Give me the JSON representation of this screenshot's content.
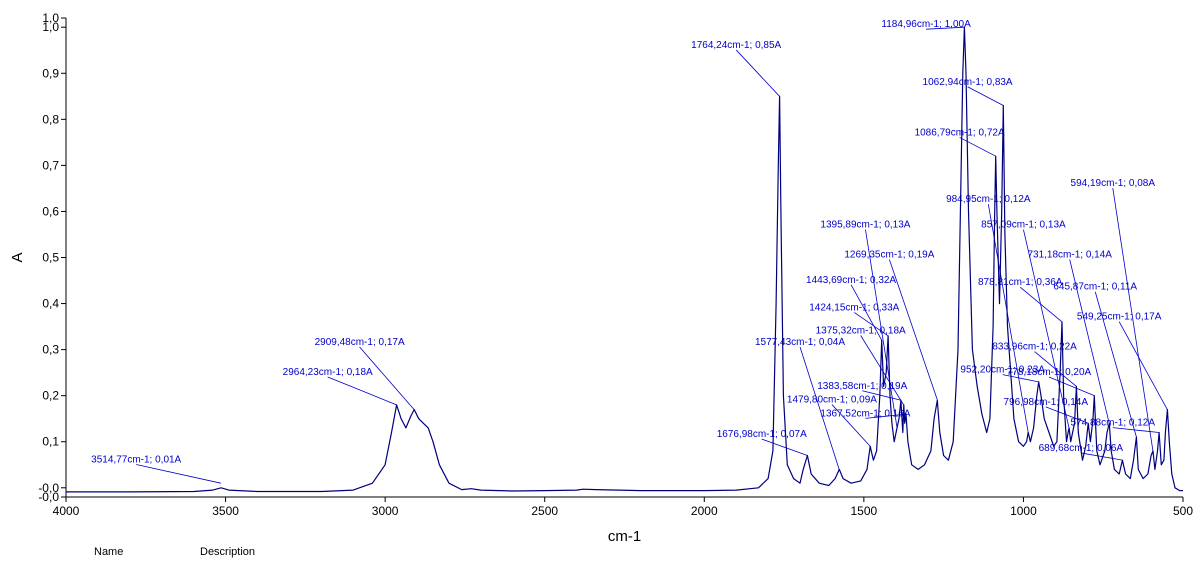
{
  "chart_data": {
    "type": "line",
    "xlabel": "cm-1",
    "ylabel": "A",
    "xlim": [
      4000,
      500
    ],
    "ylim": [
      -0.02,
      1.02
    ],
    "x_reversed": true,
    "x_ticks": [
      4000,
      3500,
      3000,
      2500,
      2000,
      1500,
      1000,
      500
    ],
    "x_tick_labels": [
      "4000",
      "3500",
      "3000",
      "2500",
      "2000",
      "1500",
      "1000",
      "500"
    ],
    "y_ticks": [
      {
        "value": -0.02,
        "label": "-0,0"
      },
      {
        "value": 0.0,
        "label": "-0,0"
      },
      {
        "value": 0.1,
        "label": "0,1"
      },
      {
        "value": 0.2,
        "label": "0,2"
      },
      {
        "value": 0.3,
        "label": "0,3"
      },
      {
        "value": 0.4,
        "label": "0,4"
      },
      {
        "value": 0.5,
        "label": "0,5"
      },
      {
        "value": 0.6,
        "label": "0,6"
      },
      {
        "value": 0.7,
        "label": "0,7"
      },
      {
        "value": 0.8,
        "label": "0,8"
      },
      {
        "value": 0.9,
        "label": "0,9"
      },
      {
        "value": 1.0,
        "label": "1,0"
      },
      {
        "value": 1.02,
        "label": "1,0"
      }
    ],
    "grid": false,
    "line_color": "#00007f",
    "annotation_color": "#0000cc",
    "series": [
      {
        "points": [
          [
            4000,
            -0.009
          ],
          [
            3800,
            -0.009
          ],
          [
            3600,
            -0.008
          ],
          [
            3540,
            -0.005
          ],
          [
            3514,
            0.0
          ],
          [
            3490,
            -0.005
          ],
          [
            3400,
            -0.008
          ],
          [
            3200,
            -0.008
          ],
          [
            3100,
            -0.005
          ],
          [
            3040,
            0.01
          ],
          [
            3000,
            0.05
          ],
          [
            2980,
            0.12
          ],
          [
            2964,
            0.18
          ],
          [
            2950,
            0.15
          ],
          [
            2935,
            0.13
          ],
          [
            2920,
            0.155
          ],
          [
            2909,
            0.17
          ],
          [
            2895,
            0.15
          ],
          [
            2880,
            0.14
          ],
          [
            2865,
            0.13
          ],
          [
            2850,
            0.1
          ],
          [
            2830,
            0.05
          ],
          [
            2800,
            0.01
          ],
          [
            2760,
            -0.004
          ],
          [
            2730,
            -0.002
          ],
          [
            2700,
            -0.005
          ],
          [
            2600,
            -0.007
          ],
          [
            2500,
            -0.006
          ],
          [
            2400,
            -0.005
          ],
          [
            2380,
            -0.003
          ],
          [
            2340,
            -0.004
          ],
          [
            2200,
            -0.006
          ],
          [
            2000,
            -0.006
          ],
          [
            1900,
            -0.005
          ],
          [
            1830,
            0.0
          ],
          [
            1800,
            0.02
          ],
          [
            1785,
            0.08
          ],
          [
            1775,
            0.4
          ],
          [
            1768,
            0.7
          ],
          [
            1764,
            0.85
          ],
          [
            1760,
            0.6
          ],
          [
            1752,
            0.2
          ],
          [
            1740,
            0.05
          ],
          [
            1720,
            0.02
          ],
          [
            1700,
            0.01
          ],
          [
            1690,
            0.04
          ],
          [
            1677,
            0.07
          ],
          [
            1665,
            0.03
          ],
          [
            1640,
            0.01
          ],
          [
            1610,
            0.005
          ],
          [
            1590,
            0.02
          ],
          [
            1577,
            0.04
          ],
          [
            1565,
            0.02
          ],
          [
            1540,
            0.01
          ],
          [
            1510,
            0.015
          ],
          [
            1490,
            0.04
          ],
          [
            1480,
            0.09
          ],
          [
            1470,
            0.06
          ],
          [
            1460,
            0.08
          ],
          [
            1450,
            0.2
          ],
          [
            1444,
            0.32
          ],
          [
            1438,
            0.22
          ],
          [
            1430,
            0.25
          ],
          [
            1424,
            0.33
          ],
          [
            1418,
            0.2
          ],
          [
            1412,
            0.14
          ],
          [
            1405,
            0.1
          ],
          [
            1396,
            0.13
          ],
          [
            1390,
            0.15
          ],
          [
            1384,
            0.19
          ],
          [
            1378,
            0.12
          ],
          [
            1375,
            0.18
          ],
          [
            1372,
            0.14
          ],
          [
            1368,
            0.16
          ],
          [
            1362,
            0.1
          ],
          [
            1350,
            0.05
          ],
          [
            1330,
            0.04
          ],
          [
            1310,
            0.05
          ],
          [
            1290,
            0.08
          ],
          [
            1280,
            0.15
          ],
          [
            1270,
            0.19
          ],
          [
            1262,
            0.12
          ],
          [
            1250,
            0.07
          ],
          [
            1235,
            0.06
          ],
          [
            1220,
            0.1
          ],
          [
            1205,
            0.3
          ],
          [
            1195,
            0.7
          ],
          [
            1190,
            0.9
          ],
          [
            1185,
            1.0
          ],
          [
            1180,
            0.9
          ],
          [
            1172,
            0.6
          ],
          [
            1160,
            0.3
          ],
          [
            1145,
            0.22
          ],
          [
            1130,
            0.16
          ],
          [
            1115,
            0.12
          ],
          [
            1105,
            0.15
          ],
          [
            1095,
            0.35
          ],
          [
            1090,
            0.6
          ],
          [
            1087,
            0.72
          ],
          [
            1083,
            0.6
          ],
          [
            1075,
            0.4
          ],
          [
            1068,
            0.6
          ],
          [
            1063,
            0.83
          ],
          [
            1058,
            0.55
          ],
          [
            1050,
            0.35
          ],
          [
            1040,
            0.25
          ],
          [
            1030,
            0.15
          ],
          [
            1015,
            0.1
          ],
          [
            1000,
            0.09
          ],
          [
            990,
            0.1
          ],
          [
            985,
            0.12
          ],
          [
            978,
            0.1
          ],
          [
            968,
            0.13
          ],
          [
            958,
            0.2
          ],
          [
            952,
            0.23
          ],
          [
            945,
            0.2
          ],
          [
            935,
            0.15
          ],
          [
            920,
            0.12
          ],
          [
            905,
            0.09
          ],
          [
            895,
            0.1
          ],
          [
            885,
            0.25
          ],
          [
            879,
            0.36
          ],
          [
            874,
            0.2
          ],
          [
            865,
            0.1
          ],
          [
            860,
            0.12
          ],
          [
            857,
            0.13
          ],
          [
            852,
            0.1
          ],
          [
            840,
            0.14
          ],
          [
            834,
            0.22
          ],
          [
            828,
            0.12
          ],
          [
            815,
            0.06
          ],
          [
            805,
            0.09
          ],
          [
            797,
            0.14
          ],
          [
            790,
            0.1
          ],
          [
            782,
            0.15
          ],
          [
            778,
            0.2
          ],
          [
            770,
            0.08
          ],
          [
            760,
            0.05
          ],
          [
            745,
            0.08
          ],
          [
            738,
            0.12
          ],
          [
            731,
            0.14
          ],
          [
            725,
            0.08
          ],
          [
            715,
            0.04
          ],
          [
            700,
            0.03
          ],
          [
            690,
            0.06
          ],
          [
            680,
            0.03
          ],
          [
            665,
            0.02
          ],
          [
            655,
            0.06
          ],
          [
            646,
            0.11
          ],
          [
            640,
            0.04
          ],
          [
            625,
            0.02
          ],
          [
            610,
            0.03
          ],
          [
            600,
            0.07
          ],
          [
            594,
            0.08
          ],
          [
            588,
            0.04
          ],
          [
            580,
            0.08
          ],
          [
            575,
            0.12
          ],
          [
            568,
            0.05
          ],
          [
            560,
            0.06
          ],
          [
            555,
            0.12
          ],
          [
            549,
            0.17
          ],
          [
            543,
            0.1
          ],
          [
            535,
            0.03
          ],
          [
            525,
            0.0
          ],
          [
            510,
            -0.006
          ],
          [
            500,
            -0.006
          ]
        ]
      }
    ],
    "annotations": [
      {
        "x": 3514.77,
        "y": 0.01,
        "label": "3514,77cm-1; 0,01A",
        "lx": 3780,
        "ly": 0.055
      },
      {
        "x": 2964.23,
        "y": 0.18,
        "label": "2964,23cm-1; 0,18A",
        "lx": 3180,
        "ly": 0.245
      },
      {
        "x": 2909.48,
        "y": 0.17,
        "label": "2909,48cm-1; 0,17A",
        "lx": 3080,
        "ly": 0.31
      },
      {
        "x": 1764.24,
        "y": 0.85,
        "label": "1764,24cm-1; 0,85A",
        "lx": 1900,
        "ly": 0.955
      },
      {
        "x": 1676.98,
        "y": 0.07,
        "label": "1676,98cm-1; 0,07A",
        "lx": 1820,
        "ly": 0.11
      },
      {
        "x": 1577.43,
        "y": 0.04,
        "label": "1577,43cm-1; 0,04A",
        "lx": 1700,
        "ly": 0.31
      },
      {
        "x": 1479.8,
        "y": 0.09,
        "label": "1479,80cm-1; 0,09A",
        "lx": 1600,
        "ly": 0.185
      },
      {
        "x": 1443.69,
        "y": 0.32,
        "label": "1443,69cm-1; 0,32A",
        "lx": 1540,
        "ly": 0.445
      },
      {
        "x": 1424.15,
        "y": 0.33,
        "label": "1424,15cm-1; 0,33A",
        "lx": 1530,
        "ly": 0.385
      },
      {
        "x": 1395.89,
        "y": 0.13,
        "label": "1395,89cm-1; 0,13A",
        "lx": 1495,
        "ly": 0.565
      },
      {
        "x": 1383.58,
        "y": 0.19,
        "label": "1383,58cm-1; 0,19A",
        "lx": 1505,
        "ly": 0.215
      },
      {
        "x": 1375.32,
        "y": 0.18,
        "label": "1375,32cm-1; 0,18A",
        "lx": 1510,
        "ly": 0.335
      },
      {
        "x": 1367.52,
        "y": 0.16,
        "label": "1367,52cm-1; 0,16A",
        "lx": 1495,
        "ly": 0.155
      },
      {
        "x": 1269.35,
        "y": 0.19,
        "label": "1269,35cm-1; 0,19A",
        "lx": 1420,
        "ly": 0.5
      },
      {
        "x": 1184.96,
        "y": 1.0,
        "label": "1184,96cm-1; 1,00A",
        "lx": 1305,
        "ly": 1.0
      },
      {
        "x": 1086.79,
        "y": 0.72,
        "label": "1086,79cm-1; 0,72A",
        "lx": 1200,
        "ly": 0.765
      },
      {
        "x": 1062.94,
        "y": 0.83,
        "label": "1062,94cm-1; 0,83A",
        "lx": 1175,
        "ly": 0.875
      },
      {
        "x": 984.95,
        "y": 0.12,
        "label": "984,95cm-1; 0,12A",
        "lx": 1110,
        "ly": 0.62
      },
      {
        "x": 952.2,
        "y": 0.23,
        "label": "952,20cm-1; 0,23A",
        "lx": 1065,
        "ly": 0.25
      },
      {
        "x": 878.81,
        "y": 0.36,
        "label": "878,81cm-1; 0,36A",
        "lx": 1010,
        "ly": 0.44
      },
      {
        "x": 857.09,
        "y": 0.13,
        "label": "857,09cm-1; 0,13A",
        "lx": 1000,
        "ly": 0.565
      },
      {
        "x": 833.96,
        "y": 0.22,
        "label": "833,96cm-1; 0,22A",
        "lx": 965,
        "ly": 0.3
      },
      {
        "x": 796.98,
        "y": 0.14,
        "label": "796,98cm-1; 0,14A",
        "lx": 930,
        "ly": 0.18
      },
      {
        "x": 778.18,
        "y": 0.2,
        "label": "778,18cm-1; 0,20A",
        "lx": 920,
        "ly": 0.245
      },
      {
        "x": 731.18,
        "y": 0.14,
        "label": "731,18cm-1; 0,14A",
        "lx": 855,
        "ly": 0.5
      },
      {
        "x": 689.68,
        "y": 0.06,
        "label": "689,68cm-1; 0,06A",
        "lx": 820,
        "ly": 0.08
      },
      {
        "x": 645.87,
        "y": 0.11,
        "label": "645,87cm-1; 0,11A",
        "lx": 775,
        "ly": 0.43
      },
      {
        "x": 594.19,
        "y": 0.08,
        "label": "594,19cm-1; 0,08A",
        "lx": 720,
        "ly": 0.655
      },
      {
        "x": 574.88,
        "y": 0.12,
        "label": "574,88cm-1; 0,12A",
        "lx": 720,
        "ly": 0.135
      },
      {
        "x": 549.25,
        "y": 0.17,
        "label": "549,25cm-1; 0,17A",
        "lx": 700,
        "ly": 0.365
      }
    ]
  },
  "footer": {
    "name_label": "Name",
    "description_label": "Description"
  }
}
